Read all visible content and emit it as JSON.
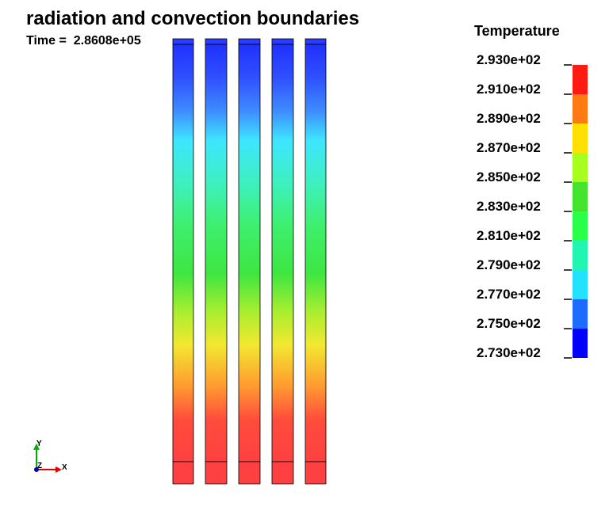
{
  "title": "radiation and convection boundaries",
  "time_label": "Time =  2.8608e+05",
  "legend": {
    "title": "Temperature",
    "labels": [
      "2.930e+02",
      "2.910e+02",
      "2.890e+02",
      "2.870e+02",
      "2.850e+02",
      "2.830e+02",
      "2.810e+02",
      "2.790e+02",
      "2.770e+02",
      "2.750e+02",
      "2.730e+02"
    ],
    "colors": [
      "#ff1a12",
      "#ff7a12",
      "#ffe000",
      "#a6ff1e",
      "#44e32e",
      "#2aff4a",
      "#22f5b2",
      "#22e2ff",
      "#1e6cff",
      "#0000ff"
    ]
  },
  "triad": {
    "y": "Y",
    "z": "Z",
    "x": "X"
  }
}
